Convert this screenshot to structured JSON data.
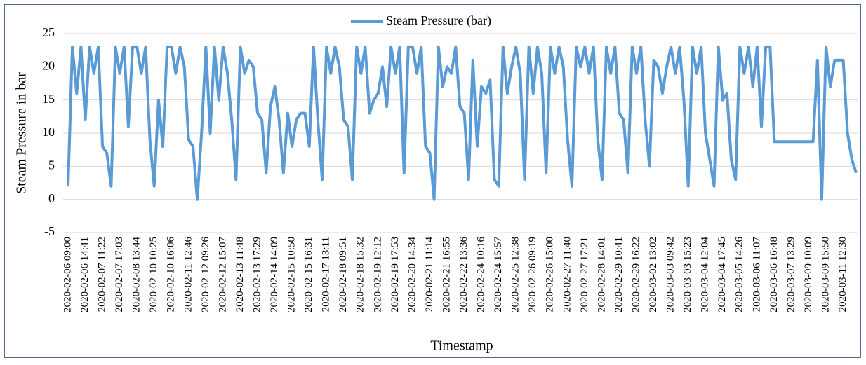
{
  "chart_data": {
    "type": "line",
    "y_axis_label": "Steam Pressure in bar",
    "x_axis_label": "Timestamp",
    "categories": [
      "2020-02-06 09:00",
      null,
      null,
      null,
      "2020-02-06 14:41",
      null,
      null,
      null,
      "2020-02-07 11:22",
      null,
      null,
      null,
      "2020-02-07 17:03",
      null,
      null,
      null,
      "2020-02-08 13:44",
      null,
      null,
      null,
      "2020-02-10 10:25",
      null,
      null,
      null,
      "2020-02-10 16:06",
      null,
      null,
      null,
      "2020-02-11 12:46",
      null,
      null,
      null,
      "2020-02-12 09:26",
      null,
      null,
      null,
      "2020-02-12 15:07",
      null,
      null,
      null,
      "2020-02-13 11:48",
      null,
      null,
      null,
      "2020-02-13 17:29",
      null,
      null,
      null,
      "2020-02-14 14:09",
      null,
      null,
      null,
      "2020-02-15 10:50",
      null,
      null,
      null,
      "2020-02-15 16:31",
      null,
      null,
      null,
      "2020-02-17 13:11",
      null,
      null,
      null,
      "2020-02-18 09:51",
      null,
      null,
      null,
      "2020-02-18 15:32",
      null,
      null,
      null,
      "2020-02-19 12:12",
      null,
      null,
      null,
      "2020-02-19 17:53",
      null,
      null,
      null,
      "2020-02-20 14:34",
      null,
      null,
      null,
      "2020-02-21 11:14",
      null,
      null,
      null,
      "2020-02-21 16:55",
      null,
      null,
      null,
      "2020-02-22 13:36",
      null,
      null,
      null,
      "2020-02-24 10:16",
      null,
      null,
      null,
      "2020-02-24 15:57",
      null,
      null,
      null,
      "2020-02-25 12:38",
      null,
      null,
      null,
      "2020-02-26 09:19",
      null,
      null,
      null,
      "2020-02-26 15:00",
      null,
      null,
      null,
      "2020-02-27 11:40",
      null,
      null,
      null,
      "2020-02-27 17:21",
      null,
      null,
      null,
      "2020-02-28 14:01",
      null,
      null,
      null,
      "2020-02-29 10:41",
      null,
      null,
      null,
      "2020-02-29 16:22",
      null,
      null,
      null,
      "2020-03-02 13:02",
      null,
      null,
      null,
      "2020-03-03 09:42",
      null,
      null,
      null,
      "2020-03-03 15:23",
      null,
      null,
      null,
      "2020-03-04 12:04",
      null,
      null,
      null,
      "2020-03-04 17:45",
      null,
      null,
      null,
      "2020-03-05 14:26",
      null,
      null,
      null,
      "2020-03-06 11:07",
      null,
      null,
      null,
      "2020-03-06 16:48",
      null,
      null,
      null,
      "2020-03-07 13:29",
      null,
      null,
      null,
      "2020-03-09 10:09",
      null,
      null,
      null,
      "2020-03-09 15:50",
      null,
      null,
      null,
      "2020-03-11 12:30",
      null,
      null,
      null
    ],
    "series": [
      {
        "name": "Steam Pressure (bar)",
        "color": "#5b9bd5",
        "values": [
          2,
          23,
          16,
          23,
          12,
          23,
          19,
          23,
          8,
          7,
          2,
          23,
          19,
          23,
          11,
          23,
          23,
          19,
          23,
          9,
          2,
          15,
          8,
          23,
          23,
          19,
          23,
          20,
          9,
          8,
          0,
          10,
          23,
          10,
          23,
          15,
          23,
          19,
          12,
          3,
          23,
          19,
          21,
          20,
          13,
          12,
          4,
          14,
          17,
          12,
          4,
          13,
          8,
          12,
          13,
          13,
          8,
          23,
          12,
          3,
          23,
          19,
          23,
          20,
          12,
          11,
          3,
          23,
          19,
          23,
          13,
          15,
          16,
          20,
          14,
          23,
          19,
          23,
          4,
          23,
          23,
          19,
          23,
          8,
          7,
          0,
          23,
          17,
          20,
          19,
          23,
          14,
          13,
          3,
          21,
          8,
          17,
          16,
          18,
          3,
          2,
          23,
          16,
          20,
          23,
          19,
          3,
          23,
          16,
          23,
          19,
          4,
          23,
          19,
          23,
          20,
          9,
          2,
          23,
          20,
          23,
          19,
          23,
          9,
          3,
          23,
          19,
          23,
          13,
          12,
          4,
          23,
          19,
          23,
          12,
          5,
          21,
          20,
          16,
          20,
          23,
          19,
          23,
          15,
          2,
          23,
          19,
          23,
          10,
          6,
          2,
          23,
          15,
          16,
          6,
          3,
          23,
          19,
          23,
          17,
          23,
          11,
          23,
          23,
          8.7,
          8.7,
          8.7,
          8.7,
          8.7,
          8.7,
          8.7,
          8.7,
          8.7,
          8.7,
          21,
          0,
          23,
          17,
          21,
          21,
          21,
          10,
          6,
          4
        ]
      }
    ],
    "ylim": [
      -5,
      25
    ],
    "yticks": [
      -5,
      0,
      5,
      10,
      15,
      20,
      25
    ],
    "grid": true,
    "legend": "top"
  }
}
